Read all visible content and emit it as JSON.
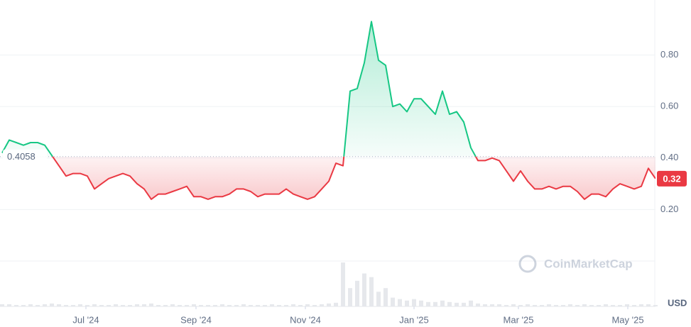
{
  "chart_data": {
    "type": "line",
    "baseline": 0.4058,
    "up_color": "#16c784",
    "down_color": "#ea3943",
    "volume_color": "#e6e8ec",
    "unit": "USD",
    "watermark": "CoinMarketCap",
    "grid": true,
    "xlim": [
      0,
      92
    ],
    "xticks": [
      {
        "value": 11.8,
        "label": "Jul '24"
      },
      {
        "value": 27.3,
        "label": "Sep '24"
      },
      {
        "value": 42.7,
        "label": "Nov '24"
      },
      {
        "value": 58,
        "label": "Jan '25"
      },
      {
        "value": 72.7,
        "label": "Mar '25"
      },
      {
        "value": 88.1,
        "label": "May '25"
      }
    ],
    "ylim": [
      0,
      1
    ],
    "yticks": [
      {
        "value": 0.2,
        "label": "0.20"
      },
      {
        "value": 0.4,
        "label": "0.40"
      },
      {
        "value": 0.6,
        "label": "0.60"
      },
      {
        "value": 0.8,
        "label": "0.80"
      }
    ],
    "values": [
      0.42,
      0.47,
      0.46,
      0.45,
      0.46,
      0.46,
      0.45,
      0.41,
      0.37,
      0.33,
      0.34,
      0.34,
      0.33,
      0.28,
      0.3,
      0.32,
      0.33,
      0.34,
      0.33,
      0.3,
      0.28,
      0.24,
      0.26,
      0.26,
      0.27,
      0.28,
      0.29,
      0.25,
      0.25,
      0.24,
      0.25,
      0.25,
      0.26,
      0.28,
      0.28,
      0.27,
      0.25,
      0.26,
      0.26,
      0.26,
      0.28,
      0.26,
      0.25,
      0.24,
      0.25,
      0.28,
      0.31,
      0.38,
      0.37,
      0.66,
      0.67,
      0.77,
      0.93,
      0.78,
      0.76,
      0.6,
      0.61,
      0.58,
      0.63,
      0.63,
      0.6,
      0.57,
      0.66,
      0.57,
      0.58,
      0.54,
      0.44,
      0.39,
      0.39,
      0.4,
      0.39,
      0.35,
      0.31,
      0.35,
      0.31,
      0.28,
      0.28,
      0.29,
      0.28,
      0.29,
      0.29,
      0.27,
      0.24,
      0.26,
      0.26,
      0.25,
      0.28,
      0.3,
      0.29,
      0.28,
      0.29,
      0.36,
      0.32
    ],
    "volume": [
      3,
      3,
      2,
      2,
      3,
      2,
      3,
      4,
      3,
      2,
      2,
      3,
      2,
      3,
      2,
      2,
      3,
      2,
      2,
      3,
      3,
      4,
      2,
      2,
      3,
      2,
      2,
      3,
      2,
      2,
      2,
      3,
      2,
      2,
      3,
      2,
      2,
      2,
      3,
      2,
      2,
      3,
      2,
      3,
      2,
      3,
      4,
      5,
      60,
      25,
      35,
      45,
      40,
      20,
      25,
      12,
      10,
      8,
      10,
      8,
      6,
      6,
      8,
      6,
      5,
      5,
      8,
      4,
      3,
      3,
      3,
      2,
      3,
      2,
      3,
      2,
      2,
      3,
      2,
      2,
      3,
      2,
      3,
      2,
      2,
      3,
      2,
      2,
      3,
      2,
      3,
      3,
      2
    ]
  }
}
